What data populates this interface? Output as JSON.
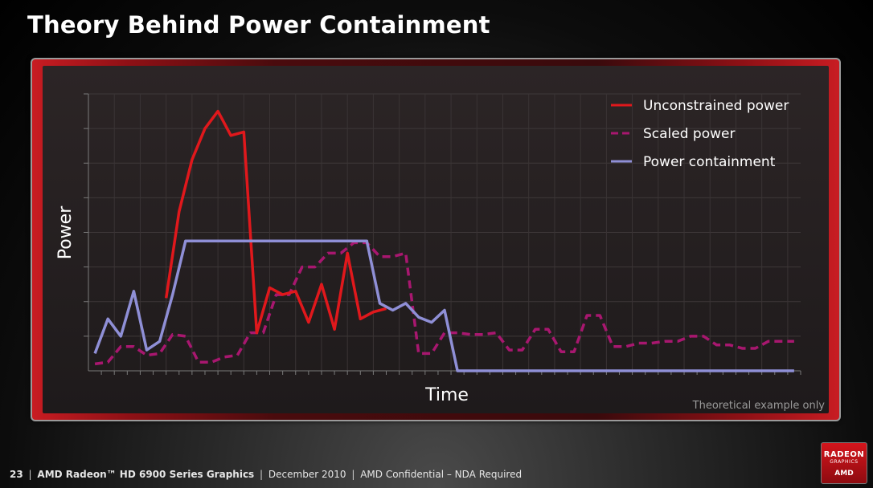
{
  "slide": {
    "title": "Theory Behind Power Containment"
  },
  "footer": {
    "page": "23",
    "product": "AMD Radeon™ HD 6900 Series Graphics",
    "date": "December 2010",
    "confidential": "AMD Confidential – NDA Required"
  },
  "logo": {
    "line1": "RADEON",
    "line2": "GRAPHICS",
    "line3": "AMD"
  },
  "colors": {
    "unconstrained": "#e0181c",
    "scaled": "#a8176f",
    "containment": "#8f8fd6"
  },
  "chart_data": {
    "type": "line",
    "title": "",
    "xlabel": "Time",
    "ylabel": "Power",
    "xlim": [
      0,
      55
    ],
    "ylim": [
      0,
      8
    ],
    "grid": true,
    "legend_position": "top-right",
    "annotation": "Theoretical example only",
    "series": [
      {
        "name": "Unconstrained power",
        "style": "solid",
        "x": [
          6,
          7,
          8,
          9,
          10,
          11,
          12,
          13,
          14,
          15,
          16,
          17,
          18,
          19,
          20,
          21,
          22,
          23
        ],
        "y": [
          2.1,
          4.6,
          6.1,
          7.0,
          7.5,
          6.8,
          6.9,
          1.1,
          2.4,
          2.2,
          2.3,
          1.4,
          2.5,
          1.2,
          3.4,
          1.5,
          1.7,
          1.8
        ]
      },
      {
        "name": "Scaled power",
        "style": "dashed",
        "x": [
          0.5,
          1.5,
          2.5,
          3.5,
          4.5,
          5.5,
          6.5,
          7.5,
          8.5,
          9.5,
          10.5,
          11.5,
          12.5,
          13.5,
          14.5,
          15.5,
          16.5,
          17.5,
          18.5,
          19.5,
          20.5,
          21.5,
          22.5,
          23.5,
          24.5,
          25.5,
          26.5,
          27.5,
          28.5,
          29.5,
          30.5,
          31.5,
          32.5,
          33.5,
          34.5,
          35.5,
          36.5,
          37.5,
          38.5,
          39.5,
          40.5,
          41.5,
          42.5,
          43.5,
          44.5,
          45.5,
          46.5,
          47.5,
          48.5,
          49.5,
          50.5,
          51.5,
          52.5,
          53.5,
          54.5
        ],
        "y": [
          0.2,
          0.25,
          0.7,
          0.7,
          0.45,
          0.5,
          1.05,
          1.0,
          0.25,
          0.25,
          0.4,
          0.45,
          1.1,
          1.1,
          2.2,
          2.2,
          3.0,
          3.0,
          3.4,
          3.4,
          3.7,
          3.7,
          3.3,
          3.3,
          3.4,
          0.5,
          0.5,
          1.1,
          1.1,
          1.05,
          1.05,
          1.1,
          0.6,
          0.6,
          1.2,
          1.2,
          0.55,
          0.55,
          1.6,
          1.6,
          0.7,
          0.7,
          0.8,
          0.8,
          0.85,
          0.85,
          1.0,
          1.0,
          0.75,
          0.75,
          0.65,
          0.65,
          0.85,
          0.85,
          0.85
        ]
      },
      {
        "name": "Power containment",
        "style": "solid",
        "x": [
          0.5,
          1.5,
          2.5,
          3.5,
          4.5,
          5.5,
          6.5,
          7.5,
          8.5,
          9.5,
          10.5,
          11.5,
          12.5,
          13.5,
          14.5,
          15.5,
          16.5,
          17.5,
          18.5,
          19.5,
          20.5,
          21.5,
          22.5,
          23.5,
          24.5,
          25.5,
          26.5,
          27.5,
          28.5,
          29.5,
          30.5,
          31.5,
          32.5,
          33.5,
          34.5,
          35.5,
          36.5,
          37.5,
          38.5,
          39.5,
          40.5,
          41.5,
          42.5,
          43.5,
          44.5,
          45.5,
          46.5,
          47.5,
          48.5,
          49.5,
          50.5,
          51.5,
          52.5,
          53.5,
          54.5
        ],
        "y": [
          0.5,
          1.5,
          1.0,
          2.3,
          0.6,
          0.85,
          2.2,
          3.75,
          3.75,
          3.75,
          3.75,
          3.75,
          3.75,
          3.75,
          3.75,
          3.75,
          3.75,
          3.75,
          3.75,
          3.75,
          3.75,
          3.75,
          1.95,
          1.75,
          1.95,
          1.55,
          1.4,
          1.75,
          0.0,
          0.0,
          0.0,
          0.0,
          0.0,
          0.0,
          0.0,
          0.0,
          0.0,
          0.0,
          0.0,
          0.0,
          0.0,
          0.0,
          0.0,
          0.0,
          0.0,
          0.0,
          0.0,
          0.0,
          0.0,
          0.0,
          0.0,
          0.0,
          0.0,
          0.0,
          0.0
        ]
      }
    ]
  }
}
